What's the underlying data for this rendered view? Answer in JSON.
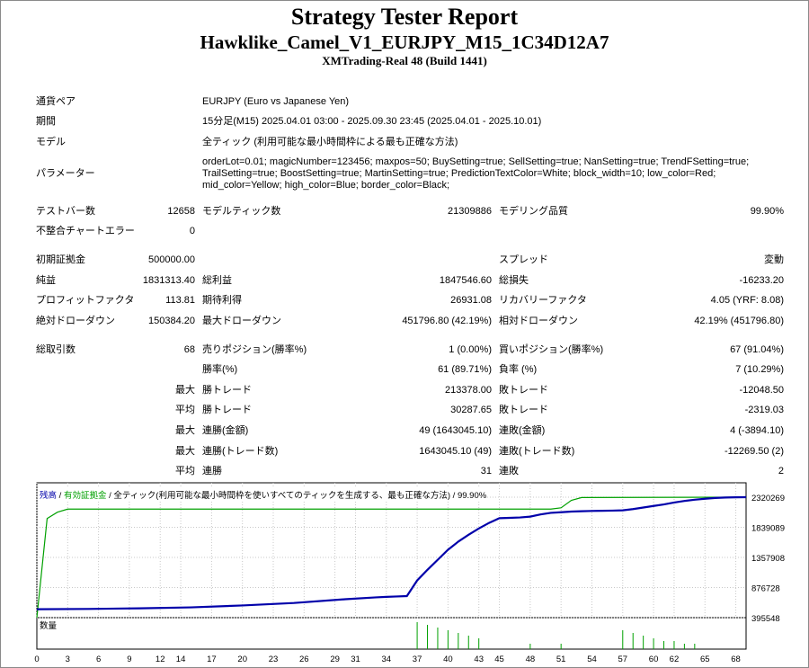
{
  "header": {
    "title": "Strategy Tester Report",
    "subtitle": "Hawklike_Camel_V1_EURJPY_M15_1C34D12A7",
    "server": "XMTrading-Real 48 (Build 1441)"
  },
  "info": {
    "symbol_label": "通貨ペア",
    "symbol_value": "EURJPY (Euro vs Japanese Yen)",
    "period_label": "期間",
    "period_value": "15分足(M15) 2025.04.01 03:00 - 2025.09.30 23:45 (2025.04.01 - 2025.10.01)",
    "model_label": "モデル",
    "model_value": "全ティック (利用可能な最小時間枠による最も正確な方法)",
    "params_label": "パラメーター",
    "params_lines": [
      "orderLot=0.01; magicNumber=123456; maxpos=50; BuySetting=true; SellSetting=true; NanSetting=true; TrendFSetting=true;",
      "TrailSetting=true; BoostSetting=true; MartinSetting=true; PredictionTextColor=White; block_width=10; low_color=Red;",
      "mid_color=Yellow; high_color=Blue; border_color=Black;"
    ]
  },
  "stats": {
    "bars_label": "テストバー数",
    "bars_value": "12658",
    "ticks_label": "モデルティック数",
    "ticks_value": "21309886",
    "quality_label": "モデリング品質",
    "quality_value": "99.90%",
    "errors_label": "不整合チャートエラー",
    "errors_value": "0",
    "deposit_label": "初期証拠金",
    "deposit_value": "500000.00",
    "spread_label": "スプレッド",
    "spread_value": "変動",
    "net_label": "純益",
    "net_value": "1831313.40",
    "gross_profit_label": "総利益",
    "gross_profit_value": "1847546.60",
    "gross_loss_label": "総損失",
    "gross_loss_value": "-16233.20",
    "pf_label": "プロフィットファクタ",
    "pf_value": "113.81",
    "payoff_label": "期待利得",
    "payoff_value": "26931.08",
    "rf_label": "リカバリーファクタ",
    "rf_value": "4.05 (YRF: 8.08)",
    "abs_dd_label": "絶対ドローダウン",
    "abs_dd_value": "150384.20",
    "max_dd_label": "最大ドローダウン",
    "max_dd_value": "451796.80 (42.19%)",
    "rel_dd_label": "相対ドローダウン",
    "rel_dd_value": "42.19% (451796.80)",
    "trades_label": "総取引数",
    "trades_value": "68",
    "short_label": "売りポジション(勝率%)",
    "short_value": "1 (0.00%)",
    "long_label": "買いポジション(勝率%)",
    "long_value": "67 (91.04%)",
    "win_label": "勝率(%)",
    "win_value": "61 (89.71%)",
    "loss_label": "負率 (%)",
    "loss_value": "7 (10.29%)",
    "max_label": "最大",
    "avg_label": "平均",
    "win_trade_label": "勝トレード",
    "max_win_value": "213378.00",
    "avg_win_value": "30287.65",
    "loss_trade_label": "敗トレード",
    "max_loss_value": "-12048.50",
    "avg_loss_value": "-2319.03",
    "cw_money_label": "連勝(金額)",
    "cw_money_value": "49 (1643045.10)",
    "cl_money_label": "連敗(金額)",
    "cl_money_value": "4 (-3894.10)",
    "cw_count_label": "連勝(トレード数)",
    "cw_count_value": "1643045.10 (49)",
    "cl_count_label": "連敗(トレード数)",
    "cl_count_value": "-12269.50 (2)",
    "cwins_label": "連勝",
    "avg_cwins_value": "31",
    "closses_label": "連敗",
    "avg_closses_value": "2"
  },
  "legend": {
    "balance": "残高",
    "sep1": " / ",
    "margin": "有効証拠金",
    "sep2": " / ",
    "model": "全ティック(利用可能な最小時間枠を使いすべてのティックを生成する、最も正確な方法)",
    "sep3": " / ",
    "quality": "99.90%"
  },
  "volume_label": "数量",
  "colors": {
    "balance": "#0000AA",
    "equity": "#00A000",
    "volume": "#00A000"
  },
  "chart_data": {
    "type": "line",
    "ylim": [
      395548,
      2320269
    ],
    "y_ticks": [
      2320269,
      1839089,
      1357908,
      876728,
      395548
    ],
    "x_ticks": [
      0,
      3,
      6,
      9,
      12,
      14,
      17,
      20,
      23,
      26,
      29,
      31,
      34,
      37,
      40,
      43,
      45,
      48,
      51,
      54,
      57,
      60,
      62,
      65,
      68
    ],
    "x_range": [
      0,
      69
    ],
    "series": [
      {
        "name": "残高",
        "x": [
          0,
          5,
          10,
          15,
          20,
          25,
          30,
          33,
          34,
          35,
          36,
          37,
          38,
          39,
          40,
          41,
          42,
          43,
          44,
          45,
          46,
          47,
          48,
          49,
          50,
          51,
          52,
          53,
          54,
          55,
          56,
          57,
          58,
          59,
          60,
          61,
          62,
          63,
          64,
          65,
          66,
          67,
          68,
          69
        ],
        "values": [
          530000,
          535000,
          545000,
          560000,
          590000,
          630000,
          690000,
          720000,
          728000,
          734000,
          740000,
          990000,
          1160000,
          1320000,
          1480000,
          1610000,
          1720000,
          1820000,
          1910000,
          1985000,
          1990000,
          1996000,
          2010000,
          2045000,
          2070000,
          2080000,
          2090000,
          2096000,
          2100000,
          2103000,
          2106000,
          2110000,
          2130000,
          2155000,
          2180000,
          2205000,
          2235000,
          2260000,
          2280000,
          2295000,
          2308000,
          2315000,
          2318000,
          2320000
        ]
      },
      {
        "name": "有効証拠金",
        "x": [
          0,
          1,
          2,
          3,
          50,
          51,
          52,
          53,
          69
        ],
        "values": [
          395548,
          1980000,
          2080000,
          2130000,
          2130000,
          2150000,
          2270000,
          2315000,
          2320000
        ]
      }
    ],
    "volume": {
      "name": "数量",
      "x": [
        37,
        38,
        39,
        40,
        41,
        42,
        43,
        48,
        51,
        57,
        58,
        59,
        60,
        61,
        62,
        63,
        64
      ],
      "values": [
        10,
        9,
        8,
        7,
        6,
        5,
        4,
        2,
        2,
        7,
        6,
        5,
        4,
        3,
        3,
        2,
        2
      ]
    }
  }
}
